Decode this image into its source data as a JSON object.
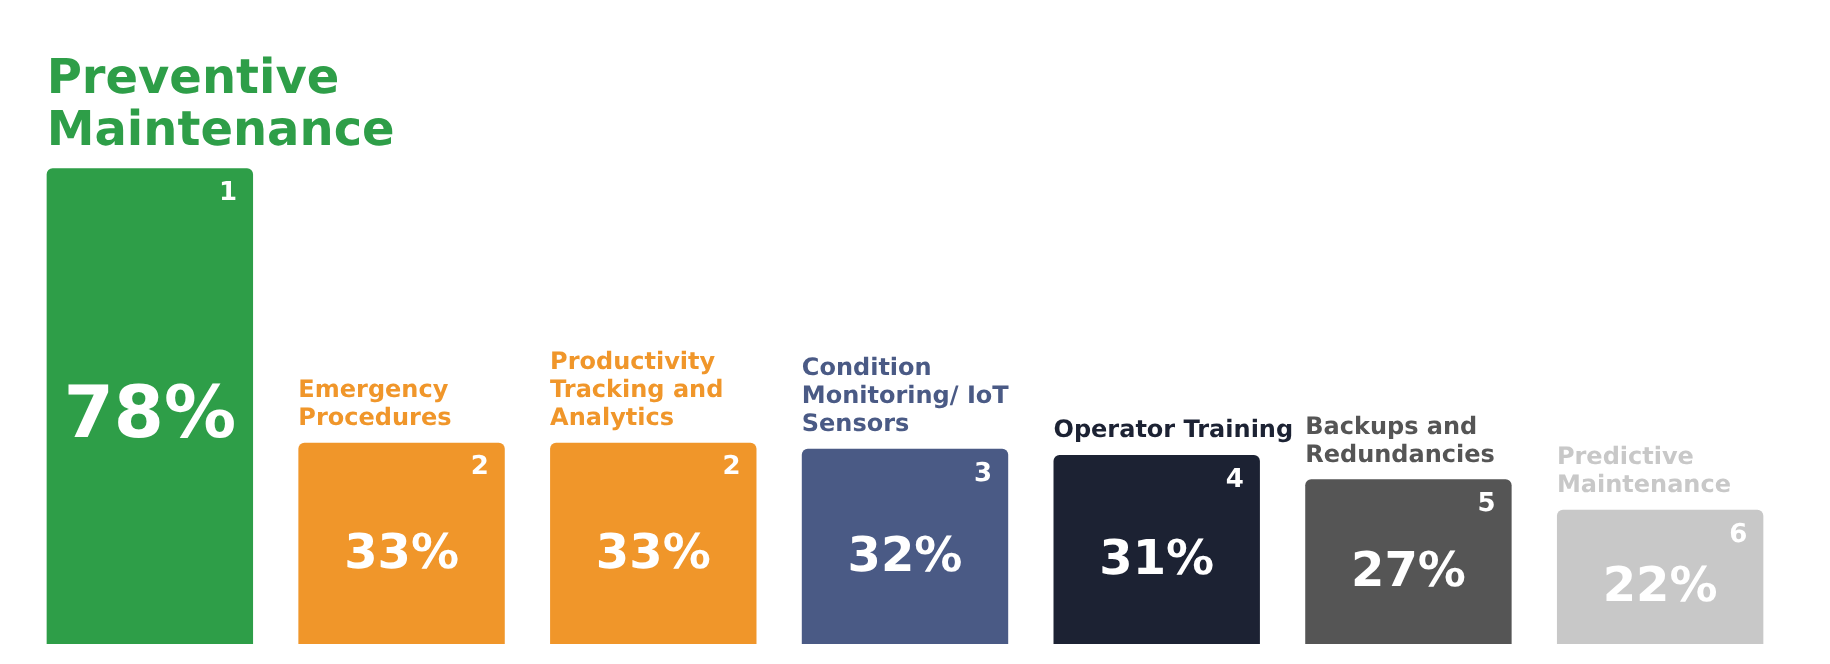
{
  "chart_data": {
    "type": "bar",
    "categories": [
      "Preventive Maintenance",
      "Emergency Procedures",
      "Productivity Tracking and Analytics",
      "Condition Monitoring/ IoT Sensors",
      "Operator Training",
      "Backups and Redundancies",
      "Predictive Maintenance"
    ],
    "values": [
      78,
      33,
      33,
      32,
      31,
      27,
      22
    ],
    "colors": [
      "#2e9e48",
      "#f0962a",
      "#f0962a",
      "#4a5a85",
      "#1c2233",
      "#555555",
      "#c8c8c8"
    ],
    "value_labels": [
      "78%",
      "33%",
      "33%",
      "32%",
      "31%",
      "27%",
      "22%"
    ],
    "annotations": [
      "1",
      "2",
      "2",
      "3",
      "4",
      "5",
      "6"
    ],
    "legend": false
  }
}
